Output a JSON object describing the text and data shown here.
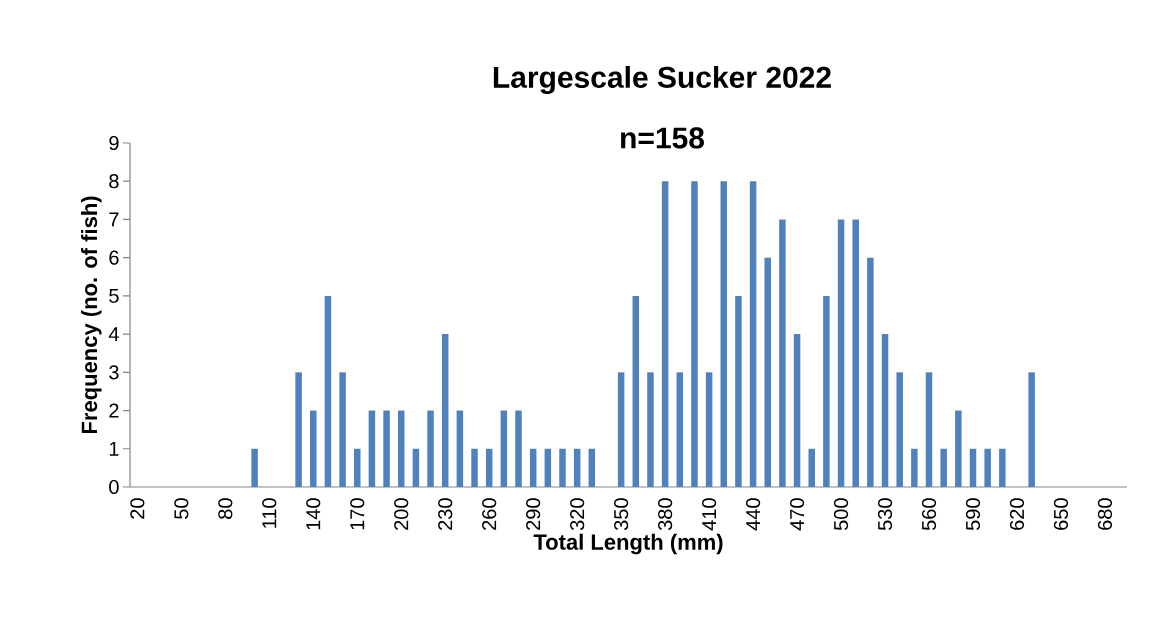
{
  "chart_data": {
    "type": "bar",
    "title": "Largescale Sucker 2022",
    "subtitle": "n=158",
    "xlabel": "Total Length (mm)",
    "ylabel": "Frequency (no. of fish)",
    "categories": [
      "20",
      null,
      null,
      "50",
      null,
      null,
      "80",
      null,
      null,
      "110",
      null,
      null,
      "140",
      null,
      null,
      "170",
      null,
      null,
      "200",
      null,
      null,
      "230",
      null,
      null,
      "260",
      null,
      null,
      "290",
      null,
      null,
      "320",
      null,
      null,
      "350",
      null,
      null,
      "380",
      null,
      null,
      "410",
      null,
      null,
      "440",
      null,
      null,
      "470",
      null,
      null,
      "500",
      null,
      null,
      "530",
      null,
      null,
      "560",
      null,
      null,
      "590",
      null,
      null,
      "620",
      null,
      null,
      "650",
      null,
      null,
      "680",
      null
    ],
    "values": [
      0,
      0,
      0,
      0,
      0,
      0,
      0,
      0,
      1,
      0,
      0,
      3,
      2,
      5,
      3,
      1,
      2,
      2,
      2,
      1,
      2,
      4,
      2,
      1,
      1,
      2,
      2,
      1,
      1,
      1,
      1,
      1,
      0,
      3,
      5,
      3,
      8,
      3,
      8,
      3,
      8,
      5,
      8,
      6,
      7,
      4,
      1,
      5,
      7,
      7,
      6,
      4,
      3,
      1,
      3,
      1,
      2,
      1,
      1,
      1,
      0,
      3,
      0,
      0,
      0,
      0,
      0,
      0
    ],
    "color": "#4f81bd",
    "ylim": [
      0,
      9
    ],
    "yticks": [
      0,
      1,
      2,
      3,
      4,
      5,
      6,
      7,
      8,
      9
    ]
  }
}
